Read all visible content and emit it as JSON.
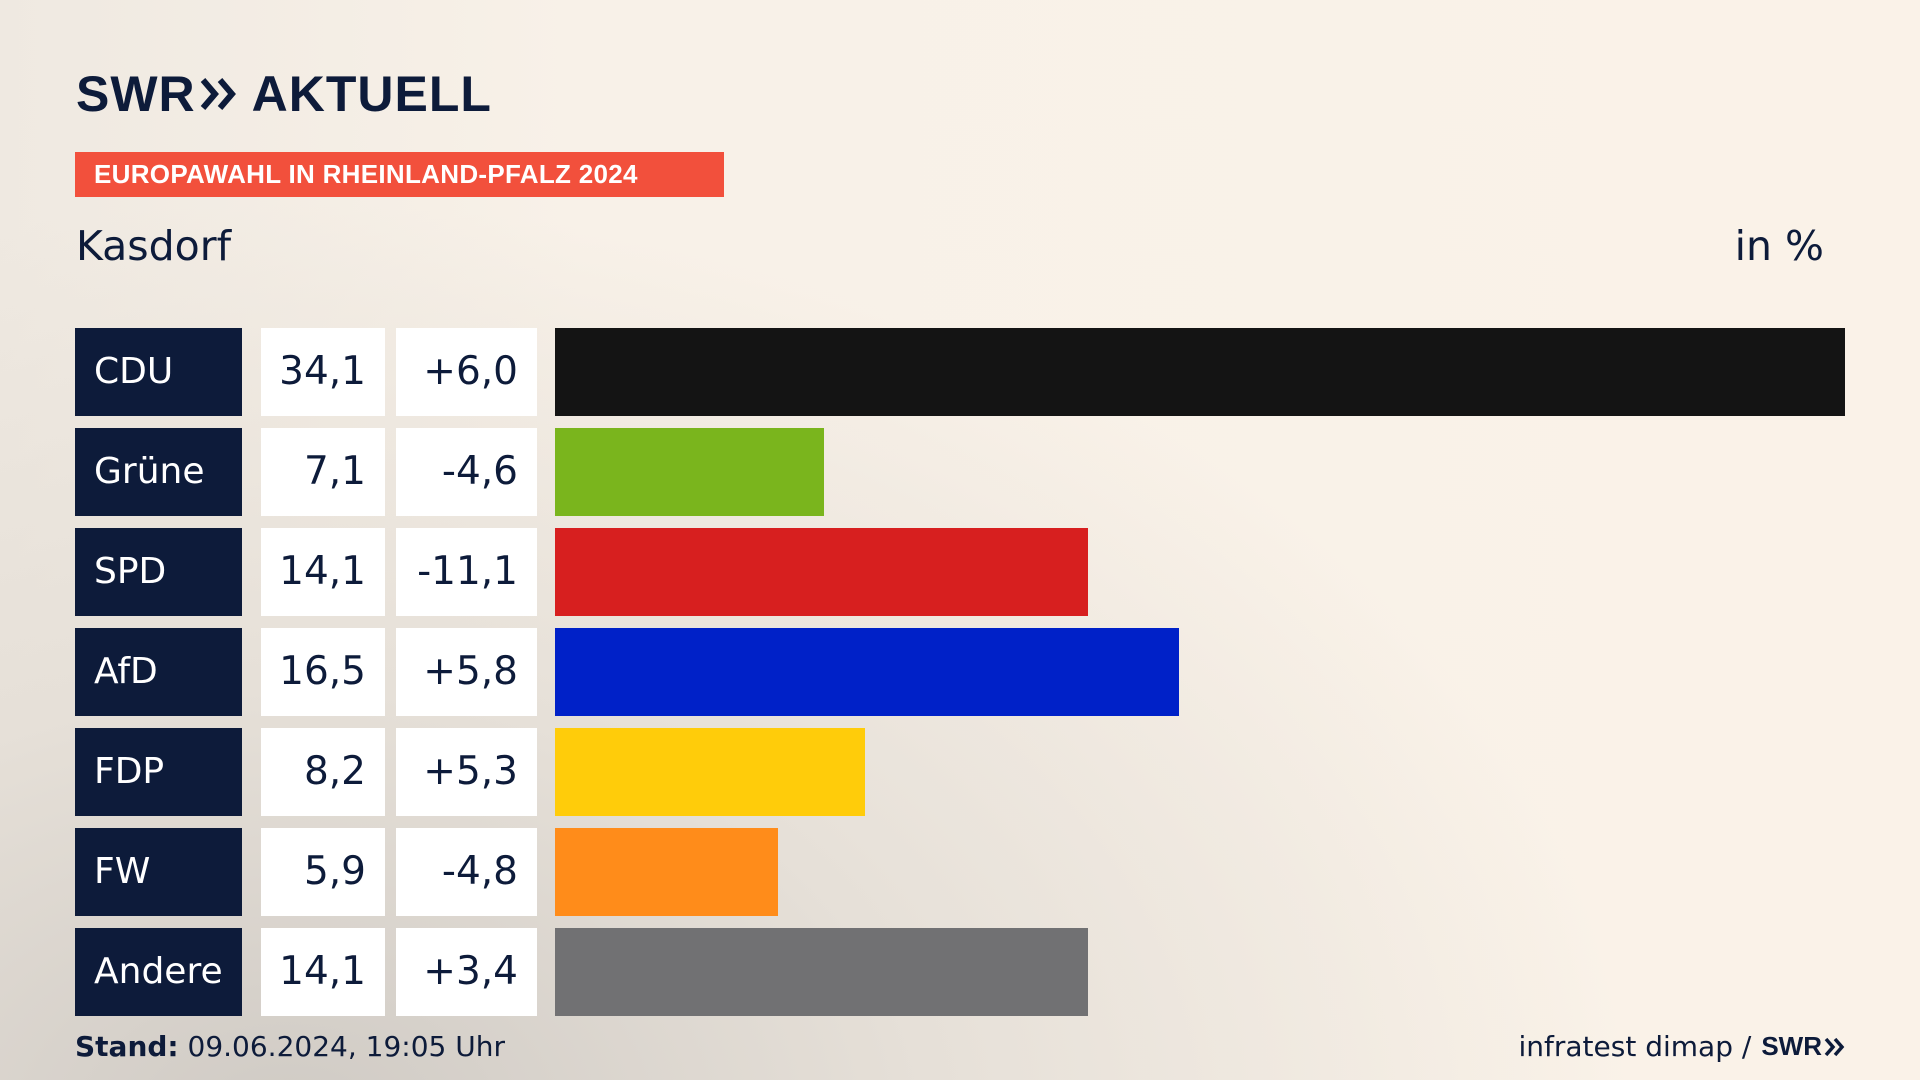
{
  "brand": {
    "name": "SWR",
    "suffix": "AKTUELL"
  },
  "banner": "EUROPAWAHL IN RHEINLAND-PFALZ 2024",
  "place": "Kasdorf",
  "unit": "in %",
  "footer": {
    "stand_label": "Stand:",
    "stand_value": " 09.06.2024, 19:05 Uhr",
    "source": "infratest dimap /",
    "source_brand": "SWR"
  },
  "chart_data": {
    "type": "bar",
    "orientation": "horizontal",
    "categories": [
      "CDU",
      "Grüne",
      "SPD",
      "AfD",
      "FDP",
      "FW",
      "Andere"
    ],
    "values": [
      34.1,
      7.1,
      14.1,
      16.5,
      8.2,
      5.9,
      14.1
    ],
    "value_labels": [
      "34,1",
      "7,1",
      "14,1",
      "16,5",
      "8,2",
      "5,9",
      "14,1"
    ],
    "changes": [
      6.0,
      -4.6,
      -11.1,
      5.8,
      5.3,
      -4.8,
      3.4
    ],
    "change_labels": [
      "+6,0",
      "-4,6",
      "-11,1",
      "+5,8",
      "+5,3",
      "-4,8",
      "+3,4"
    ],
    "colors": [
      "#141414",
      "#7ab51d",
      "#d71f1f",
      "#0021c8",
      "#ffcc0a",
      "#ff8c1a",
      "#717173"
    ],
    "xlim": [
      0,
      34.1
    ],
    "grid": false
  }
}
